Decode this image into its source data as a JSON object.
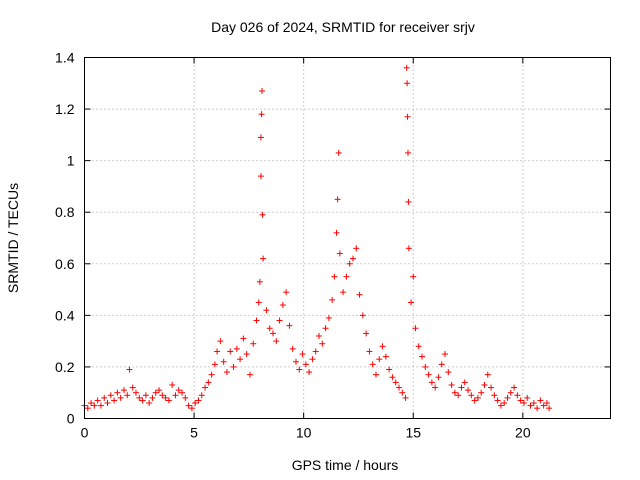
{
  "chart_data": {
    "type": "scatter",
    "title": "Day 026 of 2024, SRMTID for receiver srjv",
    "xlabel": "GPS time / hours",
    "ylabel": "SRMTID / TECUs",
    "xlim": [
      0,
      24
    ],
    "ylim": [
      0,
      1.4
    ],
    "xticks": [
      0,
      5,
      10,
      15,
      20
    ],
    "xtick_labels": [
      "0",
      "5",
      "10",
      "15",
      "20"
    ],
    "yticks": [
      0,
      0.2,
      0.4,
      0.6,
      0.8,
      1.0,
      1.2,
      1.4
    ],
    "ytick_labels": [
      "0",
      "0.2",
      "0.4",
      "0.6",
      "0.8",
      "1",
      "1.2",
      "1.4"
    ],
    "grid": true,
    "marker": "+",
    "color": "#ff0000",
    "series": [
      {
        "name": "SRMTID",
        "points": [
          [
            0.0,
            0.05
          ],
          [
            0.15,
            0.04
          ],
          [
            0.3,
            0.06
          ],
          [
            0.45,
            0.05
          ],
          [
            0.6,
            0.07
          ],
          [
            0.75,
            0.05
          ],
          [
            0.9,
            0.08
          ],
          [
            1.05,
            0.06
          ],
          [
            1.2,
            0.09
          ],
          [
            1.35,
            0.07
          ],
          [
            1.5,
            0.1
          ],
          [
            1.65,
            0.08
          ],
          [
            1.8,
            0.11
          ],
          [
            1.95,
            0.09
          ],
          [
            2.05,
            0.19
          ],
          [
            2.2,
            0.12
          ],
          [
            2.35,
            0.1
          ],
          [
            2.5,
            0.08
          ],
          [
            2.65,
            0.07
          ],
          [
            2.8,
            0.09
          ],
          [
            2.95,
            0.06
          ],
          [
            3.1,
            0.08
          ],
          [
            3.25,
            0.1
          ],
          [
            3.4,
            0.11
          ],
          [
            3.55,
            0.09
          ],
          [
            3.7,
            0.08
          ],
          [
            3.85,
            0.07
          ],
          [
            4.0,
            0.13
          ],
          [
            4.15,
            0.09
          ],
          [
            4.3,
            0.11
          ],
          [
            4.45,
            0.1
          ],
          [
            4.6,
            0.08
          ],
          [
            4.75,
            0.05
          ],
          [
            4.9,
            0.04
          ],
          [
            5.05,
            0.06
          ],
          [
            5.2,
            0.07
          ],
          [
            5.35,
            0.09
          ],
          [
            5.5,
            0.12
          ],
          [
            5.65,
            0.14
          ],
          [
            5.8,
            0.17
          ],
          [
            5.95,
            0.21
          ],
          [
            6.05,
            0.26
          ],
          [
            6.2,
            0.3
          ],
          [
            6.35,
            0.22
          ],
          [
            6.5,
            0.18
          ],
          [
            6.65,
            0.26
          ],
          [
            6.8,
            0.2
          ],
          [
            6.95,
            0.27
          ],
          [
            7.1,
            0.23
          ],
          [
            7.25,
            0.31
          ],
          [
            7.4,
            0.25
          ],
          [
            7.55,
            0.17
          ],
          [
            7.7,
            0.29
          ],
          [
            7.85,
            0.38
          ],
          [
            7.95,
            0.45
          ],
          [
            8.0,
            0.53
          ],
          [
            8.05,
            0.94
          ],
          [
            8.05,
            1.09
          ],
          [
            8.08,
            1.18
          ],
          [
            8.1,
            1.27
          ],
          [
            8.12,
            0.79
          ],
          [
            8.15,
            0.62
          ],
          [
            8.3,
            0.42
          ],
          [
            8.45,
            0.35
          ],
          [
            8.6,
            0.33
          ],
          [
            8.75,
            0.3
          ],
          [
            8.9,
            0.38
          ],
          [
            9.05,
            0.44
          ],
          [
            9.2,
            0.49
          ],
          [
            9.35,
            0.36
          ],
          [
            9.5,
            0.27
          ],
          [
            9.65,
            0.22
          ],
          [
            9.8,
            0.19
          ],
          [
            9.95,
            0.25
          ],
          [
            10.1,
            0.21
          ],
          [
            10.25,
            0.18
          ],
          [
            10.4,
            0.23
          ],
          [
            10.55,
            0.26
          ],
          [
            10.7,
            0.32
          ],
          [
            10.85,
            0.29
          ],
          [
            11.0,
            0.35
          ],
          [
            11.15,
            0.39
          ],
          [
            11.3,
            0.46
          ],
          [
            11.4,
            0.55
          ],
          [
            11.5,
            0.72
          ],
          [
            11.55,
            0.85
          ],
          [
            11.6,
            1.03
          ],
          [
            11.65,
            0.64
          ],
          [
            11.8,
            0.49
          ],
          [
            11.95,
            0.55
          ],
          [
            12.1,
            0.6
          ],
          [
            12.25,
            0.62
          ],
          [
            12.4,
            0.66
          ],
          [
            12.55,
            0.48
          ],
          [
            12.7,
            0.4
          ],
          [
            12.85,
            0.33
          ],
          [
            13.0,
            0.26
          ],
          [
            13.15,
            0.21
          ],
          [
            13.3,
            0.17
          ],
          [
            13.45,
            0.23
          ],
          [
            13.6,
            0.28
          ],
          [
            13.75,
            0.24
          ],
          [
            13.9,
            0.19
          ],
          [
            14.05,
            0.16
          ],
          [
            14.2,
            0.14
          ],
          [
            14.35,
            0.12
          ],
          [
            14.5,
            0.1
          ],
          [
            14.65,
            0.08
          ],
          [
            14.7,
            1.36
          ],
          [
            14.72,
            1.3
          ],
          [
            14.74,
            1.17
          ],
          [
            14.76,
            1.03
          ],
          [
            14.78,
            0.84
          ],
          [
            14.8,
            0.66
          ],
          [
            14.9,
            0.45
          ],
          [
            15.0,
            0.55
          ],
          [
            15.1,
            0.35
          ],
          [
            15.25,
            0.28
          ],
          [
            15.4,
            0.24
          ],
          [
            15.55,
            0.2
          ],
          [
            15.7,
            0.17
          ],
          [
            15.85,
            0.14
          ],
          [
            16.0,
            0.12
          ],
          [
            16.15,
            0.16
          ],
          [
            16.3,
            0.21
          ],
          [
            16.45,
            0.25
          ],
          [
            16.6,
            0.18
          ],
          [
            16.75,
            0.13
          ],
          [
            16.9,
            0.1
          ],
          [
            17.05,
            0.09
          ],
          [
            17.2,
            0.12
          ],
          [
            17.35,
            0.14
          ],
          [
            17.5,
            0.11
          ],
          [
            17.65,
            0.09
          ],
          [
            17.8,
            0.07
          ],
          [
            17.95,
            0.08
          ],
          [
            18.1,
            0.1
          ],
          [
            18.25,
            0.13
          ],
          [
            18.4,
            0.17
          ],
          [
            18.55,
            0.12
          ],
          [
            18.7,
            0.09
          ],
          [
            18.85,
            0.07
          ],
          [
            19.0,
            0.05
          ],
          [
            19.15,
            0.06
          ],
          [
            19.3,
            0.08
          ],
          [
            19.45,
            0.1
          ],
          [
            19.6,
            0.12
          ],
          [
            19.75,
            0.09
          ],
          [
            19.9,
            0.07
          ],
          [
            20.05,
            0.06
          ],
          [
            20.2,
            0.08
          ],
          [
            20.35,
            0.05
          ],
          [
            20.5,
            0.06
          ],
          [
            20.65,
            0.04
          ],
          [
            20.8,
            0.07
          ],
          [
            20.95,
            0.05
          ],
          [
            21.1,
            0.06
          ],
          [
            21.2,
            0.04
          ]
        ]
      }
    ]
  }
}
